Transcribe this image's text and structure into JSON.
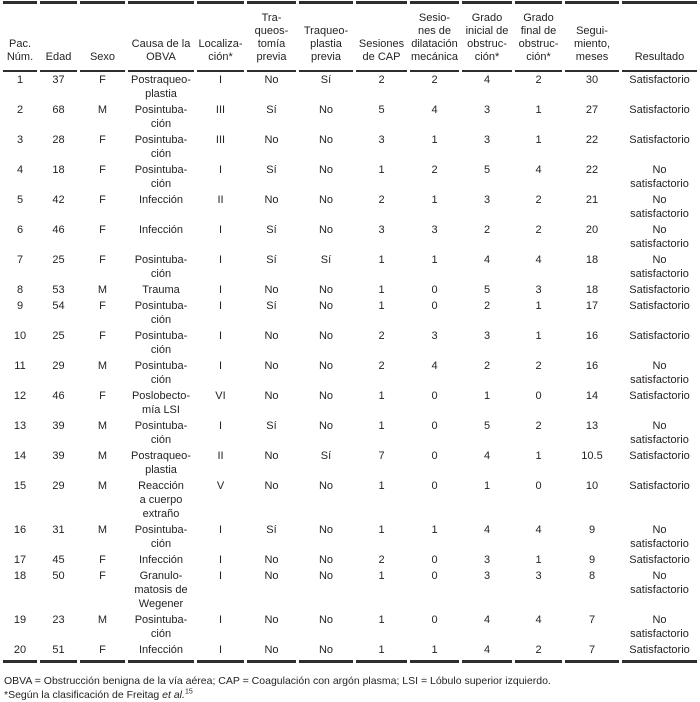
{
  "colors": {
    "background": "#ffffff",
    "text": "#231f20",
    "rule": "#2e2e2e"
  },
  "table": {
    "columns": [
      {
        "id": "pac-num",
        "label": "Pac.\nNúm."
      },
      {
        "id": "edad",
        "label": "Edad"
      },
      {
        "id": "sexo",
        "label": "Sexo"
      },
      {
        "id": "causa-obva",
        "label": "Causa de la\nOBVA"
      },
      {
        "id": "localizacion",
        "label": "Localiza-\nción*"
      },
      {
        "id": "traqueostomia-previa",
        "label": "Tra-\nqueos-\ntomía\nprevia"
      },
      {
        "id": "traqueoplastia-previa",
        "label": "Traqueo-\nplastia\nprevia"
      },
      {
        "id": "sesiones-cap",
        "label": "Sesiones\nde CAP"
      },
      {
        "id": "sesiones-dilatacion",
        "label": "Sesio-\nnes de\ndilatación\nmecánica"
      },
      {
        "id": "grado-inicial",
        "label": "Grado\ninicial de\nobstruc-\nción*"
      },
      {
        "id": "grado-final",
        "label": "Grado\nfinal de\nobstruc-\nción*"
      },
      {
        "id": "seguimiento-meses",
        "label": "Segui-\nmiento,\nmeses"
      },
      {
        "id": "resultado",
        "label": "Resultado"
      }
    ],
    "rows": [
      [
        "1",
        "37",
        "F",
        "Postraqueo-\nplastia",
        "I",
        "No",
        "Sí",
        "2",
        "2",
        "4",
        "2",
        "30",
        "Satisfactorio"
      ],
      [
        "2",
        "68",
        "M",
        "Posintuba-\nción",
        "III",
        "Sí",
        "No",
        "5",
        "4",
        "3",
        "1",
        "27",
        "Satisfactorio"
      ],
      [
        "3",
        "28",
        "F",
        "Posintuba-\nción",
        "III",
        "No",
        "No",
        "3",
        "1",
        "3",
        "1",
        "22",
        "Satisfactorio"
      ],
      [
        "4",
        "18",
        "F",
        "Posintuba-\nción",
        "I",
        "Sí",
        "No",
        "1",
        "2",
        "5",
        "4",
        "22",
        "No\nsatisfactorio"
      ],
      [
        "5",
        "42",
        "F",
        "Infección",
        "II",
        "No",
        "No",
        "2",
        "1",
        "3",
        "2",
        "21",
        "No\nsatisfactorio"
      ],
      [
        "6",
        "46",
        "F",
        "Infección",
        "I",
        "Sí",
        "No",
        "3",
        "3",
        "2",
        "2",
        "20",
        "No\nsatisfactorio"
      ],
      [
        "7",
        "25",
        "F",
        "Posintuba-\nción",
        "I",
        "Sí",
        "Sí",
        "1",
        "1",
        "4",
        "4",
        "18",
        "No\nsatisfactorio"
      ],
      [
        "8",
        "53",
        "M",
        "Trauma",
        "I",
        "No",
        "No",
        "1",
        "0",
        "5",
        "3",
        "18",
        "Satisfactorio"
      ],
      [
        "9",
        "54",
        "F",
        "Posintuba-\nción",
        "I",
        "Sí",
        "No",
        "1",
        "0",
        "2",
        "1",
        "17",
        "Satisfactorio"
      ],
      [
        "10",
        "25",
        "F",
        "Posintuba-\nción",
        "I",
        "No",
        "No",
        "2",
        "3",
        "3",
        "1",
        "16",
        "Satisfactorio"
      ],
      [
        "11",
        "29",
        "M",
        "Posintuba-\nción",
        "I",
        "No",
        "No",
        "2",
        "4",
        "2",
        "2",
        "16",
        "No\nsatisfactorio"
      ],
      [
        "12",
        "46",
        "F",
        "Poslobecto-\nmía LSI",
        "VI",
        "No",
        "No",
        "1",
        "0",
        "1",
        "0",
        "14",
        "Satisfactorio"
      ],
      [
        "13",
        "39",
        "M",
        "Posintuba-\nción",
        "I",
        "Sí",
        "No",
        "1",
        "0",
        "5",
        "2",
        "13",
        "No\nsatisfactorio"
      ],
      [
        "14",
        "39",
        "M",
        "Postraqueo-\nplastia",
        "II",
        "No",
        "Sí",
        "7",
        "0",
        "4",
        "1",
        "10.5",
        "Satisfactorio"
      ],
      [
        "15",
        "29",
        "M",
        "Reacción\na cuerpo\nextraño",
        "V",
        "No",
        "No",
        "1",
        "0",
        "1",
        "0",
        "10",
        "Satisfactorio"
      ],
      [
        "16",
        "31",
        "M",
        "Posintuba-\nción",
        "I",
        "Sí",
        "No",
        "1",
        "1",
        "4",
        "4",
        "9",
        "No\nsatisfactorio"
      ],
      [
        "17",
        "45",
        "F",
        "Infección",
        "I",
        "No",
        "No",
        "2",
        "0",
        "3",
        "1",
        "9",
        "Satisfactorio"
      ],
      [
        "18",
        "50",
        "F",
        "Granulo-\nmatosis de\nWegener",
        "I",
        "No",
        "No",
        "1",
        "0",
        "3",
        "3",
        "8",
        "No\nsatisfactorio"
      ],
      [
        "19",
        "23",
        "M",
        "Posintuba-\nción",
        "I",
        "No",
        "No",
        "1",
        "0",
        "4",
        "4",
        "7",
        "No\nsatisfactorio"
      ],
      [
        "20",
        "51",
        "F",
        "Infección",
        "I",
        "No",
        "No",
        "1",
        "1",
        "4",
        "2",
        "7",
        "Satisfactorio"
      ]
    ]
  },
  "footnotes": {
    "abbreviations": "OBVA = Obstrucción benigna de la vía aérea; CAP = Coagulación con argón plasma; LSI = Lóbulo superior izquierdo.",
    "classification_prefix": "*Según la clasificación de Freitag ",
    "classification_italic": "et al.",
    "classification_reference": "15"
  }
}
